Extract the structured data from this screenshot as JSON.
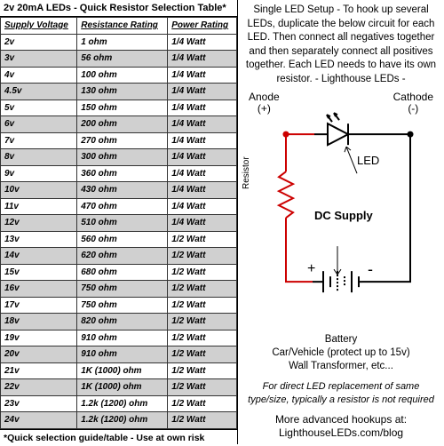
{
  "table": {
    "title": "2v 20mA LEDs - Quick Resistor Selection Table*",
    "columns": [
      "Supply Voltage",
      "Resistance Rating",
      "Power Rating"
    ],
    "rows": [
      [
        "2v",
        "1 ohm",
        "1/4 Watt"
      ],
      [
        "3v",
        "56 ohm",
        "1/4 Watt"
      ],
      [
        "4v",
        "100 ohm",
        "1/4 Watt"
      ],
      [
        "4.5v",
        "130 ohm",
        "1/4 Watt"
      ],
      [
        "5v",
        "150 ohm",
        "1/4 Watt"
      ],
      [
        "6v",
        "200 ohm",
        "1/4 Watt"
      ],
      [
        "7v",
        "270 ohm",
        "1/4 Watt"
      ],
      [
        "8v",
        "300 ohm",
        "1/4 Watt"
      ],
      [
        "9v",
        "360 ohm",
        "1/4 Watt"
      ],
      [
        "10v",
        "430 ohm",
        "1/4 Watt"
      ],
      [
        "11v",
        "470 ohm",
        "1/4 Watt"
      ],
      [
        "12v",
        "510 ohm",
        "1/4 Watt"
      ],
      [
        "13v",
        "560 ohm",
        "1/2 Watt"
      ],
      [
        "14v",
        "620 ohm",
        "1/2 Watt"
      ],
      [
        "15v",
        "680 ohm",
        "1/2 Watt"
      ],
      [
        "16v",
        "750 ohm",
        "1/2 Watt"
      ],
      [
        "17v",
        "750 ohm",
        "1/2 Watt"
      ],
      [
        "18v",
        "820 ohm",
        "1/2 Watt"
      ],
      [
        "19v",
        "910 ohm",
        "1/2 Watt"
      ],
      [
        "20v",
        "910 ohm",
        "1/2 Watt"
      ],
      [
        "21v",
        "1K (1000) ohm",
        "1/2 Watt"
      ],
      [
        "22v",
        "1K (1000) ohm",
        "1/2 Watt"
      ],
      [
        "23v",
        "1.2k (1200) ohm",
        "1/2 Watt"
      ],
      [
        "24v",
        "1.2k (1200) ohm",
        "1/2 Watt"
      ]
    ],
    "footnote": "*Quick selection guide/table - Use at own risk",
    "alt_row_color": "#d0d0d0"
  },
  "right": {
    "instructions": "Single LED Setup - To hook up several LEDs, duplicate the below circuit for each LED. Then connect all negatives together and then separately connect all positives together. Each LED needs to have its own resistor. - Lighthouse LEDs -",
    "anode": "Anode\n(+)",
    "cathode": "Cathode\n(-)",
    "led_label": "LED",
    "resistor_label": "Resistor",
    "dc_supply": "DC Supply",
    "plus": "+",
    "minus": "-",
    "battery_text": "Battery\nCar/Vehicle (protect up to 15v)\nWall Transformer, etc...",
    "italic_note": "For direct LED replacement of same type/size, typically a resistor is not required",
    "blog": "More advanced hookups at:\nLighthouseLEDs.com/blog"
  },
  "circuit": {
    "wire_pos_color": "#cc0000",
    "wire_neg_color": "#000000",
    "node_radius": 3
  }
}
